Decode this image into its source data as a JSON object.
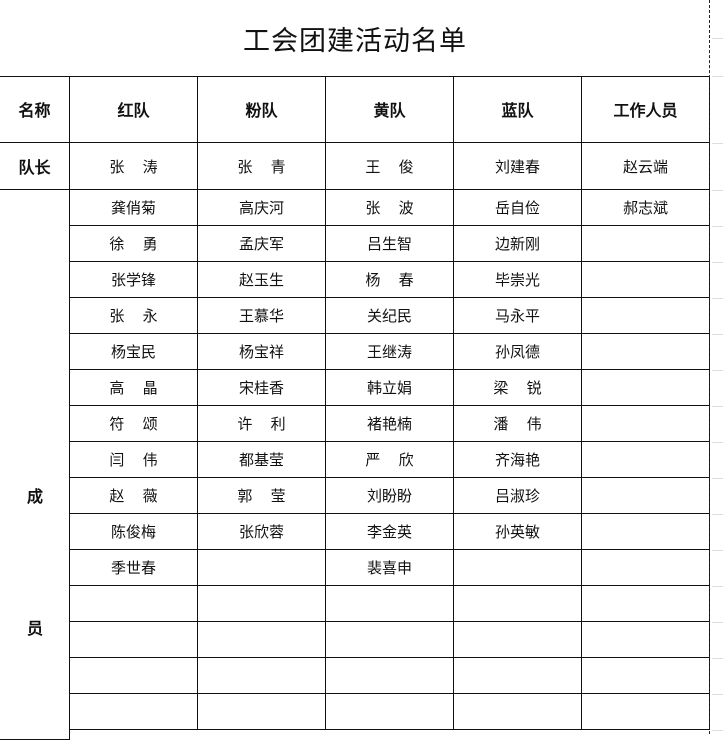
{
  "title": "工会团建活动名单",
  "header": {
    "label": "名称",
    "columns": [
      "红队",
      "粉队",
      "黄队",
      "蓝队",
      "工作人员"
    ]
  },
  "captain_row": {
    "label": "队长",
    "values": [
      "张 涛",
      "张 青",
      "王 俊",
      "刘建春",
      "赵云端"
    ]
  },
  "members_label": [
    "成",
    "员"
  ],
  "members": [
    [
      "龚俏菊",
      "高庆河",
      "张 波",
      "岳自俭",
      "郝志斌"
    ],
    [
      "徐 勇",
      "孟庆军",
      "吕生智",
      "边新刚",
      ""
    ],
    [
      "张学锋",
      "赵玉生",
      "杨 春",
      "毕崇光",
      ""
    ],
    [
      "张 永",
      "王慕华",
      "关纪民",
      "马永平",
      ""
    ],
    [
      "杨宝民",
      "杨宝祥",
      "王继涛",
      "孙凤德",
      ""
    ],
    [
      "高 晶",
      "宋桂香",
      "韩立娟",
      "梁 锐",
      ""
    ],
    [
      "符 颂",
      "许 利",
      "褚艳楠",
      "潘 伟",
      ""
    ],
    [
      "闫 伟",
      "都基莹",
      "严 欣",
      "齐海艳",
      ""
    ],
    [
      "赵 薇",
      "郭 莹",
      "刘盼盼",
      "吕淑珍",
      ""
    ],
    [
      "陈俊梅",
      "张欣蓉",
      "李金英",
      "孙英敏",
      ""
    ],
    [
      "季世春",
      "",
      "裴喜申",
      "",
      ""
    ],
    [
      "",
      "",
      "",
      "",
      ""
    ],
    [
      "",
      "",
      "",
      "",
      ""
    ],
    [
      "",
      "",
      "",
      "",
      ""
    ],
    [
      "",
      "",
      "",
      "",
      ""
    ]
  ]
}
